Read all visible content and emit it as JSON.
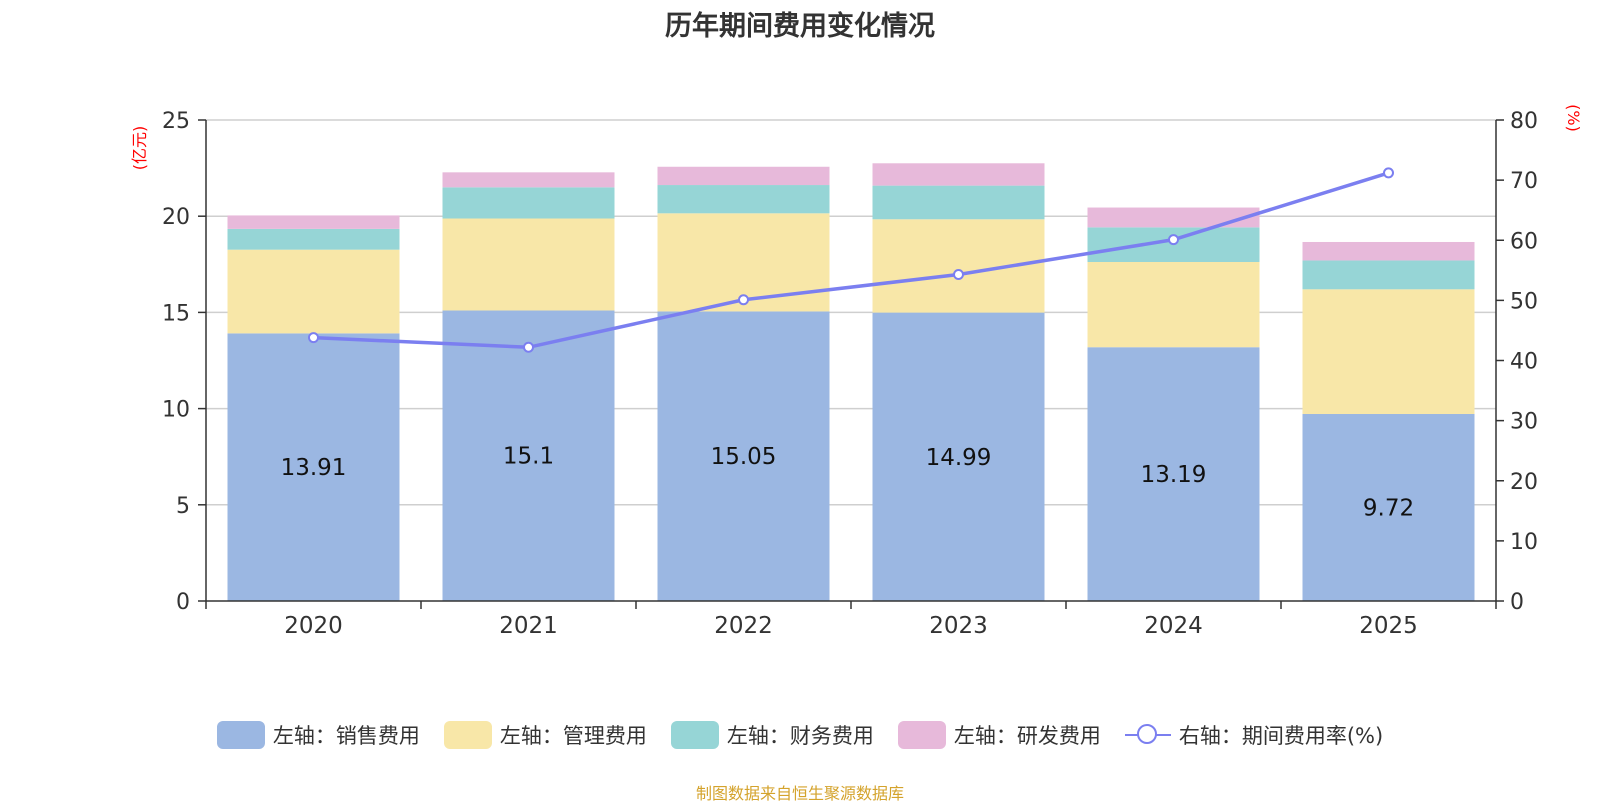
{
  "colors": {
    "sales": "#9bb7e2",
    "admin": "#f8e7a8",
    "finance": "#96d5d6",
    "rd": "#e7b9da",
    "rate_line": "#7b7ff0",
    "unit_label": "#ff0000",
    "source": "#d4a32c"
  },
  "chart_data": {
    "type": "bar",
    "stacked": true,
    "title": "历年期间费用变化情况",
    "categories": [
      "2020",
      "2021",
      "2022",
      "2023",
      "2024",
      "2025"
    ],
    "y_left": {
      "label": "(亿元)",
      "range": [
        0,
        25
      ],
      "ticks": [
        "0",
        "5",
        "10",
        "15",
        "20",
        "25"
      ]
    },
    "y_right": {
      "label": "(%)",
      "range": [
        0,
        80
      ],
      "ticks": [
        "0",
        "10",
        "20",
        "30",
        "40",
        "50",
        "60",
        "70",
        "80"
      ]
    },
    "series": [
      {
        "name": "左轴：销售费用",
        "key": "sales",
        "axis": "left",
        "type": "bar",
        "values": [
          13.91,
          15.1,
          15.05,
          14.99,
          13.19,
          9.72
        ],
        "labels": [
          "13.91",
          "15.1",
          "15.05",
          "14.99",
          "13.19",
          "9.72"
        ]
      },
      {
        "name": "左轴：管理费用",
        "key": "admin",
        "axis": "left",
        "type": "bar",
        "values": [
          4.35,
          4.78,
          5.1,
          4.85,
          4.43,
          6.48
        ]
      },
      {
        "name": "左轴：财务费用",
        "key": "finance",
        "axis": "left",
        "type": "bar",
        "values": [
          1.08,
          1.62,
          1.47,
          1.75,
          1.8,
          1.5
        ]
      },
      {
        "name": "左轴：研发费用",
        "key": "rd",
        "axis": "left",
        "type": "bar",
        "values": [
          0.7,
          0.78,
          0.95,
          1.16,
          1.03,
          0.96
        ]
      },
      {
        "name": "右轴：期间费用率(%)",
        "key": "rate_line",
        "axis": "right",
        "type": "line",
        "values": [
          43.8,
          42.2,
          50.1,
          54.3,
          60.1,
          71.2
        ]
      }
    ],
    "grid": true,
    "legend_position": "bottom"
  },
  "source_note": "制图数据来自恒生聚源数据库"
}
